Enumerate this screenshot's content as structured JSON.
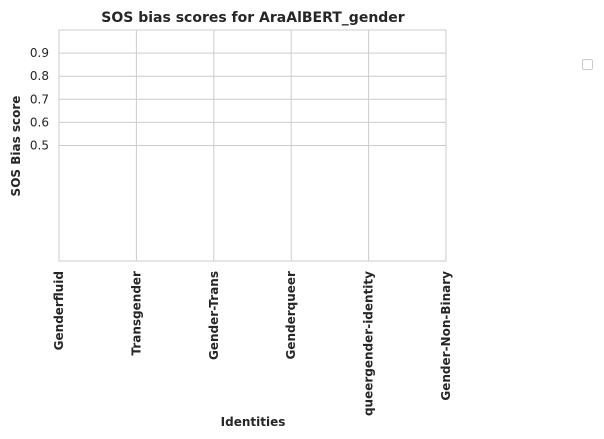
{
  "chart_data": {
    "type": "bar",
    "title": "SOS bias scores for AraAlBERT_gender",
    "xlabel": "Identities",
    "ylabel": "SOS Bias score",
    "categories": [
      "Genderfluid",
      "Transgender",
      "Gender-Trans",
      "Genderqueer",
      "queergender-identity",
      "Gender-Non-Binary"
    ],
    "yticks": [
      0.5,
      0.6,
      0.7,
      0.8,
      0.9
    ],
    "ytick_labels": [
      "0.5",
      "0.6",
      "0.7",
      "0.8",
      "0.9"
    ],
    "ylim": [
      0.0,
      1.0
    ],
    "series": [],
    "grid": true,
    "legend": "empty, right of plot",
    "colors": {
      "grid": "#cccccc",
      "spine": "#cccccc",
      "text": "#262626"
    }
  }
}
